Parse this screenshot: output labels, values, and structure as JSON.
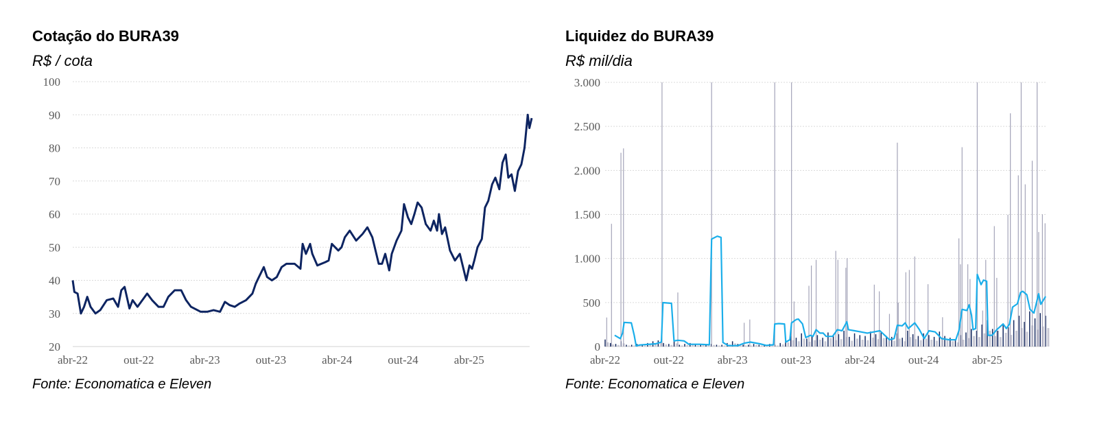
{
  "chart_data": [
    {
      "type": "line",
      "title": "Cotação do BURA39",
      "subtitle": "R$ / cota",
      "source": "Fonte: Economatica e Eleven",
      "xlabel": "",
      "ylabel": "R$ / cota",
      "x_unit": "months since abr-22",
      "xlim": [
        0,
        41.7
      ],
      "ylim": [
        20,
        100
      ],
      "yticks": [
        20,
        30,
        40,
        50,
        60,
        70,
        80,
        90,
        100
      ],
      "xticks": [
        {
          "x": 0,
          "label": "abr-22"
        },
        {
          "x": 6,
          "label": "out-22"
        },
        {
          "x": 12,
          "label": "abr-23"
        },
        {
          "x": 18,
          "label": "out-23"
        },
        {
          "x": 24,
          "label": "abr-24"
        },
        {
          "x": 30,
          "label": "out-24"
        },
        {
          "x": 36,
          "label": "abr-25"
        }
      ],
      "grid": true,
      "color": "#0d2461",
      "series": [
        {
          "name": "BURA39",
          "points": [
            [
              0,
              40
            ],
            [
              0.15,
              36.5
            ],
            [
              0.44,
              36
            ],
            [
              0.74,
              30
            ],
            [
              1.03,
              32
            ],
            [
              1.32,
              35
            ],
            [
              1.62,
              32
            ],
            [
              2.06,
              30
            ],
            [
              2.5,
              31
            ],
            [
              3.09,
              34
            ],
            [
              3.68,
              34.5
            ],
            [
              4.12,
              32
            ],
            [
              4.41,
              37
            ],
            [
              4.71,
              38
            ],
            [
              5.15,
              31.5
            ],
            [
              5.44,
              34
            ],
            [
              5.88,
              32
            ],
            [
              6.76,
              36
            ],
            [
              7.21,
              34
            ],
            [
              7.79,
              32
            ],
            [
              8.24,
              32
            ],
            [
              8.68,
              35
            ],
            [
              9.26,
              37
            ],
            [
              9.85,
              37
            ],
            [
              10.29,
              34
            ],
            [
              10.74,
              32
            ],
            [
              11.62,
              30.5
            ],
            [
              12.21,
              30.5
            ],
            [
              12.79,
              31
            ],
            [
              13.38,
              30.5
            ],
            [
              13.82,
              33.5
            ],
            [
              14.26,
              32.5
            ],
            [
              14.71,
              32
            ],
            [
              15.15,
              33
            ],
            [
              15.74,
              34
            ],
            [
              16.32,
              36
            ],
            [
              16.62,
              39
            ],
            [
              16.91,
              41
            ],
            [
              17.35,
              44
            ],
            [
              17.65,
              41
            ],
            [
              18.09,
              40
            ],
            [
              18.53,
              41
            ],
            [
              18.97,
              44
            ],
            [
              19.41,
              45
            ],
            [
              20.15,
              45
            ],
            [
              20.68,
              43.5
            ],
            [
              20.88,
              51
            ],
            [
              21.18,
              48
            ],
            [
              21.56,
              51
            ],
            [
              21.76,
              48
            ],
            [
              22.21,
              44.5
            ],
            [
              22.94,
              45.5
            ],
            [
              23.24,
              46
            ],
            [
              23.53,
              51
            ],
            [
              24.12,
              49
            ],
            [
              24.41,
              50
            ],
            [
              24.71,
              53
            ],
            [
              25.15,
              55
            ],
            [
              25.74,
              52
            ],
            [
              26.32,
              54
            ],
            [
              26.76,
              56
            ],
            [
              27.21,
              53
            ],
            [
              27.79,
              45
            ],
            [
              28.09,
              45
            ],
            [
              28.38,
              48
            ],
            [
              28.74,
              43
            ],
            [
              28.97,
              48
            ],
            [
              29.41,
              52
            ],
            [
              29.85,
              55
            ],
            [
              30.09,
              63
            ],
            [
              30.44,
              59
            ],
            [
              30.74,
              57
            ],
            [
              31.03,
              60
            ],
            [
              31.32,
              63.5
            ],
            [
              31.68,
              62
            ],
            [
              32.06,
              57
            ],
            [
              32.5,
              55
            ],
            [
              32.79,
              58
            ],
            [
              33.09,
              55
            ],
            [
              33.26,
              60
            ],
            [
              33.53,
              54
            ],
            [
              33.82,
              56
            ],
            [
              34.26,
              49
            ],
            [
              34.71,
              46
            ],
            [
              35.15,
              48
            ],
            [
              35.74,
              40
            ],
            [
              36.03,
              44.5
            ],
            [
              36.26,
              43.5
            ],
            [
              36.47,
              46
            ],
            [
              36.76,
              50
            ],
            [
              37.15,
              52.5
            ],
            [
              37.44,
              62
            ],
            [
              37.74,
              64
            ],
            [
              38.09,
              69
            ],
            [
              38.38,
              71
            ],
            [
              38.74,
              67.5
            ],
            [
              39.03,
              75.5
            ],
            [
              39.32,
              78
            ],
            [
              39.56,
              71
            ],
            [
              39.85,
              72
            ],
            [
              40.15,
              67
            ],
            [
              40.44,
              73
            ],
            [
              40.74,
              75
            ],
            [
              41.03,
              80
            ],
            [
              41.32,
              90
            ],
            [
              41.47,
              86
            ],
            [
              41.68,
              89
            ]
          ]
        }
      ]
    },
    {
      "type": "bar+line",
      "title": "Liquidez do BURA39",
      "subtitle": "R$ mil/dia",
      "source": "Fonte: Economatica e Eleven",
      "xlabel": "",
      "ylabel": "R$ mil/dia",
      "x_unit": "months since abr-22",
      "xlim": [
        0,
        41.6
      ],
      "ylim": [
        0,
        3000
      ],
      "yticks": [
        {
          "v": 0,
          "label": "0"
        },
        {
          "v": 500,
          "label": "500"
        },
        {
          "v": 1000,
          "label": "1.000"
        },
        {
          "v": 1500,
          "label": "1.500"
        },
        {
          "v": 2000,
          "label": "2.000"
        },
        {
          "v": 2500,
          "label": "2.500"
        },
        {
          "v": 3000,
          "label": "3.000"
        }
      ],
      "xticks": [
        {
          "x": 0,
          "label": "abr-22"
        },
        {
          "x": 6,
          "label": "out-22"
        },
        {
          "x": 12,
          "label": "abr-23"
        },
        {
          "x": 18,
          "label": "out-23"
        },
        {
          "x": 24,
          "label": "abr-24"
        },
        {
          "x": 30,
          "label": "out-24"
        },
        {
          "x": 36,
          "label": "abr-25"
        }
      ],
      "grid": true,
      "colors": {
        "spike": "#a3a3b8",
        "daily": "#12275e",
        "average": "#1aaeea"
      },
      "daily_volume_halfmonth": [
        80,
        40,
        30,
        60,
        20,
        20,
        30,
        20,
        40,
        60,
        70,
        40,
        30,
        60,
        20,
        30,
        40,
        20,
        30,
        20,
        30,
        20,
        20,
        40,
        60,
        30,
        20,
        20,
        30,
        20,
        20,
        30,
        20,
        40,
        80,
        120,
        100,
        150,
        90,
        120,
        130,
        100,
        160,
        120,
        140,
        180,
        110,
        150,
        130,
        120,
        170,
        140,
        160,
        120,
        110,
        150,
        100,
        180,
        140,
        120,
        150,
        130,
        110,
        170,
        120,
        100,
        80,
        130,
        160,
        200,
        180,
        250,
        300,
        200,
        180,
        260,
        220,
        300,
        350,
        280,
        400,
        320,
        380,
        350
      ],
      "spikes": [
        [
          0.15,
          330
        ],
        [
          0.6,
          1394
        ],
        [
          1.49,
          2200
        ],
        [
          1.73,
          2250
        ],
        [
          5.36,
          3000
        ],
        [
          6.85,
          614
        ],
        [
          10.03,
          3000
        ],
        [
          13.1,
          270
        ],
        [
          13.63,
          307
        ],
        [
          15.98,
          3000
        ],
        [
          17.56,
          3000
        ],
        [
          17.8,
          512
        ],
        [
          19.2,
          690
        ],
        [
          19.43,
          920
        ],
        [
          19.88,
          985
        ],
        [
          21.73,
          1087
        ],
        [
          21.93,
          985
        ],
        [
          22.68,
          895
        ],
        [
          22.8,
          1003
        ],
        [
          25.36,
          703
        ],
        [
          25.83,
          627
        ],
        [
          26.79,
          371
        ],
        [
          27.53,
          2315
        ],
        [
          27.62,
          499
        ],
        [
          28.33,
          844
        ],
        [
          28.66,
          870
        ],
        [
          29.17,
          1023
        ],
        [
          30.42,
          708
        ],
        [
          31.79,
          333
        ],
        [
          33.33,
          1228
        ],
        [
          33.48,
          934
        ],
        [
          33.63,
          2264
        ],
        [
          34.17,
          934
        ],
        [
          34.38,
          767
        ],
        [
          35.06,
          3000
        ],
        [
          35.57,
          409
        ],
        [
          35.86,
          985
        ],
        [
          36.67,
          1368
        ],
        [
          36.9,
          780
        ],
        [
          37.95,
          1496
        ],
        [
          38.18,
          2648
        ],
        [
          38.93,
          1944
        ],
        [
          39.2,
          3000
        ],
        [
          39.58,
          1842
        ],
        [
          40.24,
          2110
        ],
        [
          40.7,
          3000
        ],
        [
          40.85,
          1300
        ],
        [
          41.2,
          1500
        ],
        [
          41.45,
          1400
        ]
      ],
      "moving_average": [
        [
          0.9,
          128
        ],
        [
          1.43,
          90
        ],
        [
          1.64,
          153
        ],
        [
          1.79,
          274
        ],
        [
          2.47,
          269
        ],
        [
          2.74,
          128
        ],
        [
          2.92,
          8
        ],
        [
          3.27,
          18
        ],
        [
          4.76,
          31
        ],
        [
          5.3,
          51
        ],
        [
          5.45,
          499
        ],
        [
          6.25,
          491
        ],
        [
          6.49,
          64
        ],
        [
          6.85,
          72
        ],
        [
          7.44,
          64
        ],
        [
          7.89,
          26
        ],
        [
          8.93,
          26
        ],
        [
          9.82,
          20
        ],
        [
          10.03,
          1220
        ],
        [
          10.57,
          1253
        ],
        [
          10.92,
          1240
        ],
        [
          11.1,
          46
        ],
        [
          11.61,
          10
        ],
        [
          12.5,
          10
        ],
        [
          13.1,
          38
        ],
        [
          13.69,
          51
        ],
        [
          14.58,
          31
        ],
        [
          15.18,
          13
        ],
        [
          15.86,
          20
        ],
        [
          15.98,
          256
        ],
        [
          16.37,
          261
        ],
        [
          16.9,
          256
        ],
        [
          17.02,
          51
        ],
        [
          17.41,
          77
        ],
        [
          17.56,
          269
        ],
        [
          18.0,
          307
        ],
        [
          18.21,
          312
        ],
        [
          18.6,
          256
        ],
        [
          18.9,
          102
        ],
        [
          19.35,
          128
        ],
        [
          19.58,
          115
        ],
        [
          19.88,
          192
        ],
        [
          20.24,
          153
        ],
        [
          20.54,
          153
        ],
        [
          20.83,
          115
        ],
        [
          21.43,
          115
        ],
        [
          21.88,
          192
        ],
        [
          22.32,
          179
        ],
        [
          22.77,
          281
        ],
        [
          22.92,
          192
        ],
        [
          23.51,
          179
        ],
        [
          24.11,
          166
        ],
        [
          24.7,
          153
        ],
        [
          25.3,
          166
        ],
        [
          25.89,
          179
        ],
        [
          26.34,
          128
        ],
        [
          26.79,
          77
        ],
        [
          27.23,
          90
        ],
        [
          27.53,
          243
        ],
        [
          27.98,
          235
        ],
        [
          28.27,
          269
        ],
        [
          28.57,
          205
        ],
        [
          29.17,
          269
        ],
        [
          29.61,
          192
        ],
        [
          30.06,
          90
        ],
        [
          30.51,
          179
        ],
        [
          31.1,
          166
        ],
        [
          31.7,
          90
        ],
        [
          32.44,
          77
        ],
        [
          33.04,
          77
        ],
        [
          33.33,
          179
        ],
        [
          33.63,
          422
        ],
        [
          34.08,
          409
        ],
        [
          34.29,
          473
        ],
        [
          34.52,
          358
        ],
        [
          34.67,
          192
        ],
        [
          34.91,
          205
        ],
        [
          35.06,
          819
        ],
        [
          35.42,
          703
        ],
        [
          35.65,
          755
        ],
        [
          35.95,
          742
        ],
        [
          36.07,
          128
        ],
        [
          36.46,
          128
        ],
        [
          36.9,
          192
        ],
        [
          37.5,
          256
        ],
        [
          37.8,
          205
        ],
        [
          38.1,
          256
        ],
        [
          38.39,
          448
        ],
        [
          38.84,
          486
        ],
        [
          39.14,
          614
        ],
        [
          39.35,
          627
        ],
        [
          39.73,
          588
        ],
        [
          40.03,
          422
        ],
        [
          40.4,
          380
        ],
        [
          40.85,
          600
        ],
        [
          41.05,
          480
        ],
        [
          41.5,
          570
        ]
      ]
    }
  ]
}
